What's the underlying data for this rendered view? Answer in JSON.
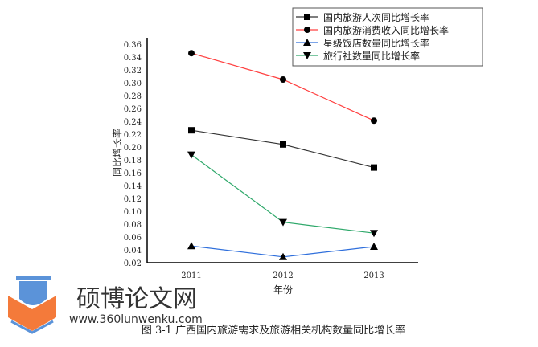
{
  "chart_data": {
    "type": "line",
    "title": "",
    "xlabel": "年份",
    "ylabel": "同比增长率",
    "categories": [
      "2011",
      "2012",
      "2013"
    ],
    "ylim": [
      0.02,
      0.36
    ],
    "yticks": [
      "0.02",
      "0.04",
      "0.06",
      "0.08",
      "0.10",
      "0.12",
      "0.14",
      "0.16",
      "0.18",
      "0.20",
      "0.22",
      "0.24",
      "0.26",
      "0.28",
      "0.30",
      "0.32",
      "0.34",
      "0.36"
    ],
    "legend_position": "top-right",
    "series": [
      {
        "name": "国内旅游人次同比增长率",
        "values": [
          0.226,
          0.204,
          0.168
        ],
        "color": "#333333",
        "marker": "square"
      },
      {
        "name": "国内旅游消费收入同比增长率",
        "values": [
          0.346,
          0.305,
          0.241
        ],
        "color": "#ff4040",
        "marker": "circle"
      },
      {
        "name": "星级饭店数量同比增长率",
        "values": [
          0.046,
          0.029,
          0.045
        ],
        "color": "#2f6fdc",
        "marker": "triangle-up"
      },
      {
        "name": "旅行社数量同比增长率",
        "values": [
          0.188,
          0.083,
          0.066
        ],
        "color": "#2ea86a",
        "marker": "triangle-down"
      }
    ]
  },
  "caption": "图 3-1 广西国内旅游需求及旅游相关机构数量同比增长率",
  "watermark": {
    "name": "硕博论文网",
    "url": "www.360lunwenku.com"
  }
}
